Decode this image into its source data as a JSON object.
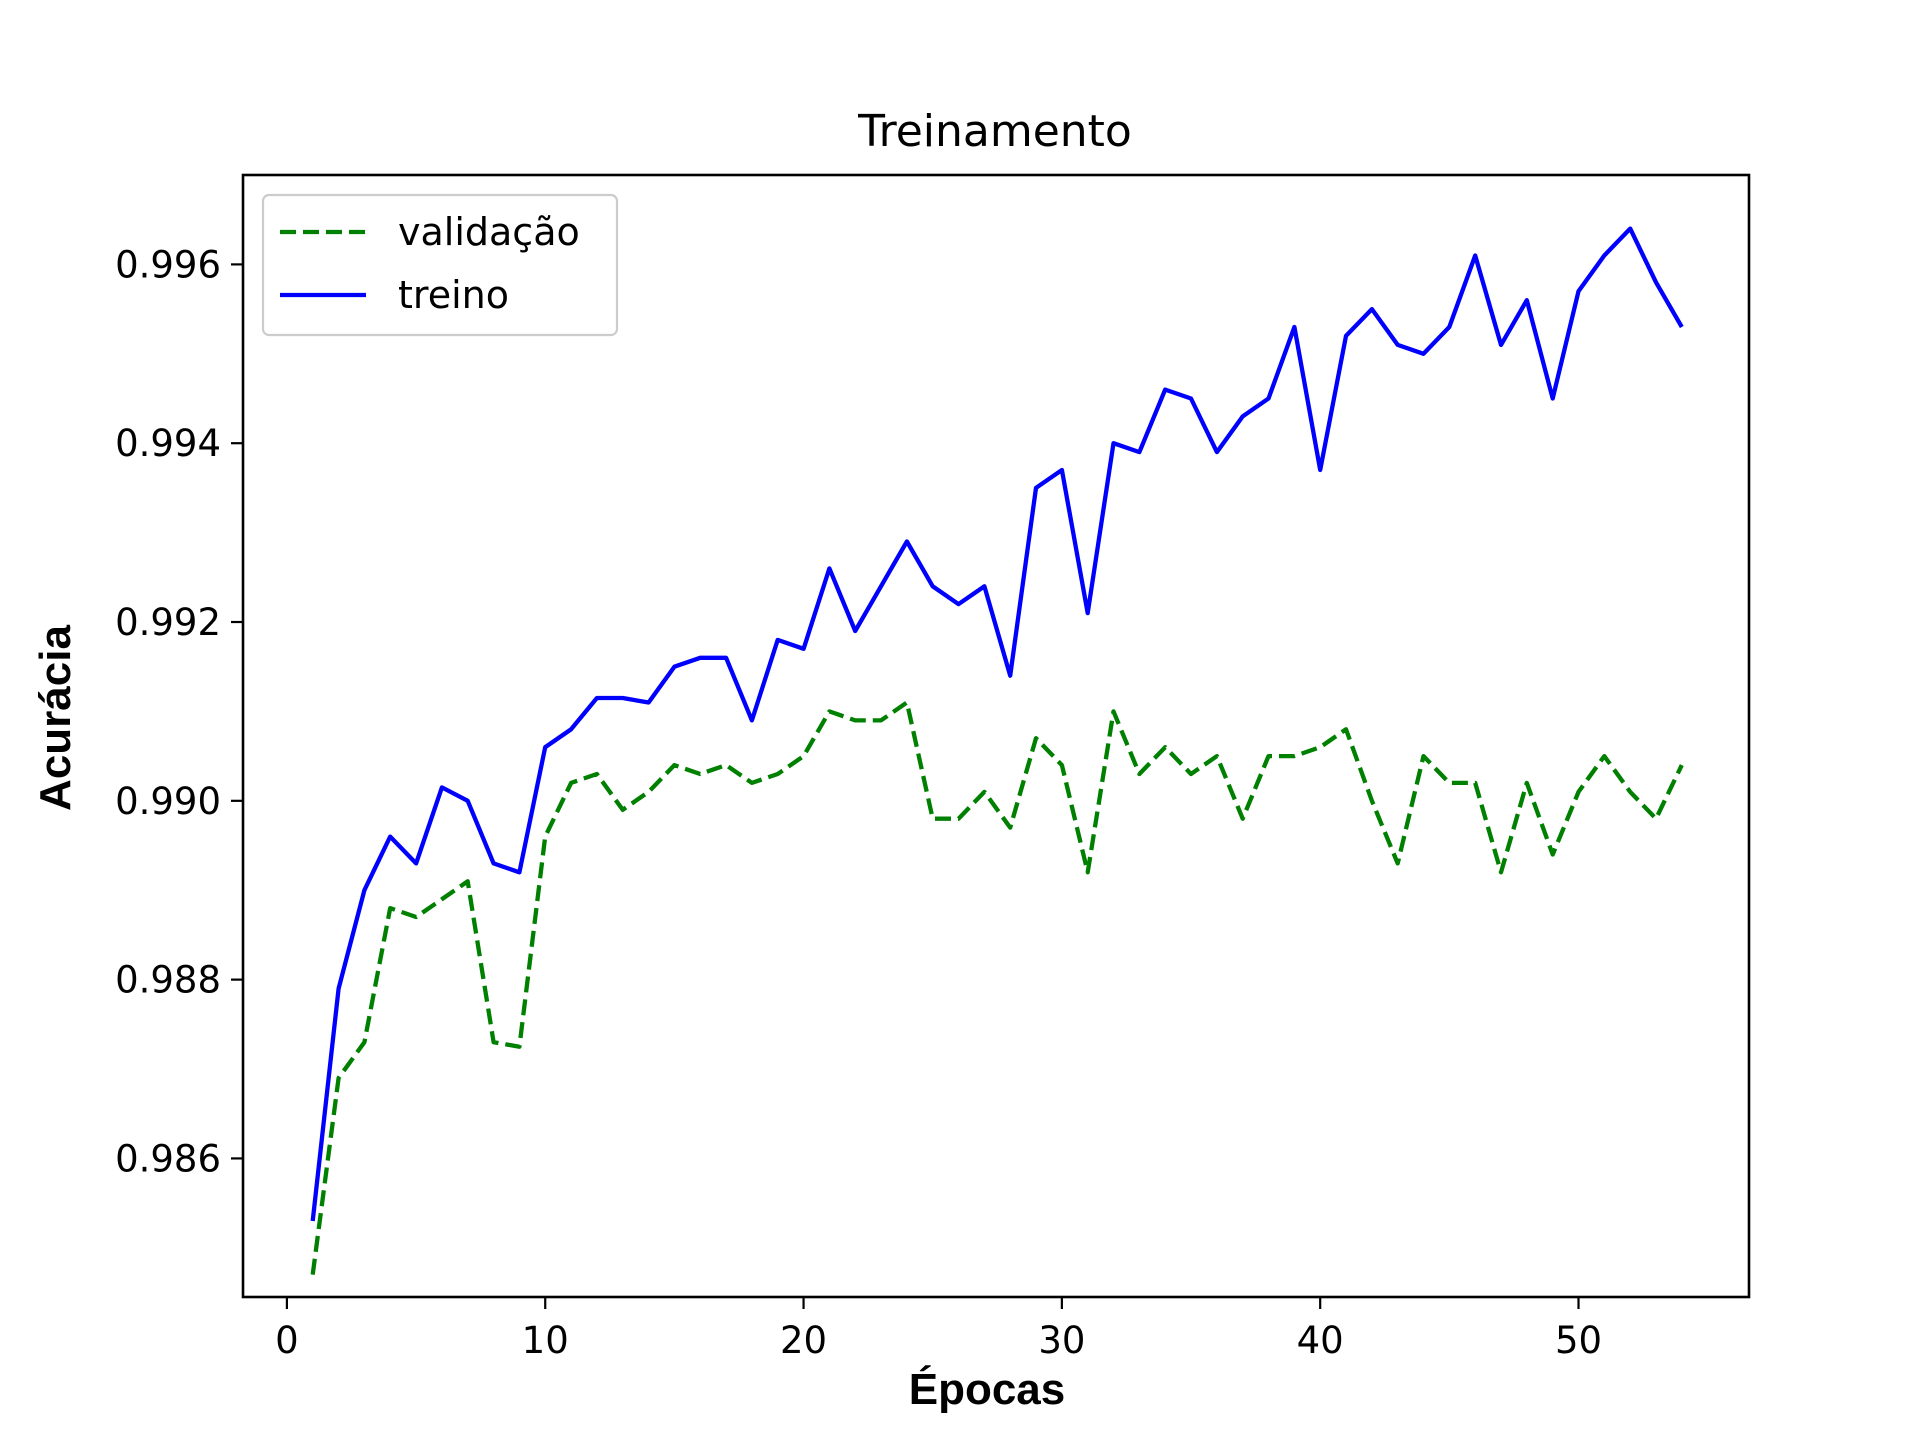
{
  "chart_data": {
    "type": "line",
    "title": "Treinamento",
    "xlabel": "Épocas",
    "ylabel": "Acurácia",
    "xlim": [
      -1.7,
      56.6
    ],
    "ylim": [
      0.98445,
      0.997
    ],
    "xticks": [
      0,
      10,
      20,
      30,
      40,
      50
    ],
    "xtick_labels": [
      "0",
      "10",
      "20",
      "30",
      "40",
      "50"
    ],
    "yticks": [
      0.986,
      0.988,
      0.99,
      0.992,
      0.994,
      0.996
    ],
    "ytick_labels": [
      "0.986",
      "0.988",
      "0.990",
      "0.992",
      "0.994",
      "0.996"
    ],
    "grid": false,
    "legend": "upper-left",
    "x": [
      1,
      2,
      3,
      4,
      5,
      6,
      7,
      8,
      9,
      10,
      11,
      12,
      13,
      14,
      15,
      16,
      17,
      18,
      19,
      20,
      21,
      22,
      23,
      24,
      25,
      26,
      27,
      28,
      29,
      30,
      31,
      32,
      33,
      34,
      35,
      36,
      37,
      38,
      39,
      40,
      41,
      42,
      43,
      44,
      45,
      46,
      47,
      48,
      49,
      50,
      51,
      52,
      53,
      54
    ],
    "series": [
      {
        "name": "validação",
        "color": "#008000",
        "style": "dashed",
        "values": [
          0.9847,
          0.9869,
          0.9873,
          0.9888,
          0.9887,
          0.9889,
          0.9891,
          0.9873,
          0.98725,
          0.9896,
          0.9902,
          0.9903,
          0.9899,
          0.9901,
          0.9904,
          0.9903,
          0.9904,
          0.9902,
          0.9903,
          0.9905,
          0.991,
          0.9909,
          0.9909,
          0.9911,
          0.9898,
          0.9898,
          0.9901,
          0.9897,
          0.9907,
          0.9904,
          0.9892,
          0.991,
          0.9903,
          0.9906,
          0.9903,
          0.9905,
          0.9898,
          0.9905,
          0.9905,
          0.9906,
          0.9908,
          0.99,
          0.9893,
          0.9905,
          0.9902,
          0.9902,
          0.9892,
          0.9902,
          0.9894,
          0.9901,
          0.9905,
          0.9901,
          0.9898,
          0.9904
        ]
      },
      {
        "name": "treino",
        "color": "#0000ff",
        "style": "solid",
        "values": [
          0.9853,
          0.9879,
          0.989,
          0.9896,
          0.9893,
          0.99015,
          0.99,
          0.9893,
          0.9892,
          0.9906,
          0.9908,
          0.99115,
          0.99115,
          0.9911,
          0.9915,
          0.9916,
          0.9916,
          0.9909,
          0.9918,
          0.9917,
          0.9926,
          0.9919,
          0.9924,
          0.9929,
          0.9924,
          0.9922,
          0.9924,
          0.9914,
          0.9935,
          0.9937,
          0.9921,
          0.994,
          0.9939,
          0.9946,
          0.9945,
          0.9939,
          0.9943,
          0.9945,
          0.9953,
          0.9937,
          0.9952,
          0.9955,
          0.9951,
          0.995,
          0.9953,
          0.9961,
          0.9951,
          0.9956,
          0.9945,
          0.9957,
          0.9961,
          0.9964,
          0.9958,
          0.9953
        ]
      }
    ]
  }
}
